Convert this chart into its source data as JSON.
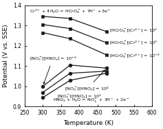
{
  "xlabel": "Temperature (K)",
  "ylabel": "Potential (V vs. SSE)",
  "xlim": [
    250,
    600
  ],
  "ylim": [
    0.9,
    1.4
  ],
  "xticks": [
    250,
    300,
    350,
    400,
    450,
    500,
    550,
    600
  ],
  "yticks": [
    0.9,
    1.0,
    1.1,
    1.2,
    1.3,
    1.4
  ],
  "cr_temps": [
    300,
    375,
    475
  ],
  "cr_line1": [
    1.345,
    1.335,
    1.27
  ],
  "cr_line2": [
    1.305,
    1.285,
    1.215
  ],
  "cr_line3": [
    1.265,
    1.235,
    1.155
  ],
  "no_temps": [
    300,
    375,
    475
  ],
  "no_line1": [
    1.0,
    1.105,
    1.09
  ],
  "no_line2": [
    0.97,
    1.065,
    1.075
  ],
  "no_line3": [
    0.945,
    1.03,
    1.065
  ],
  "marker_color": "#1a1a1a",
  "line_color": "#1a1a1a"
}
